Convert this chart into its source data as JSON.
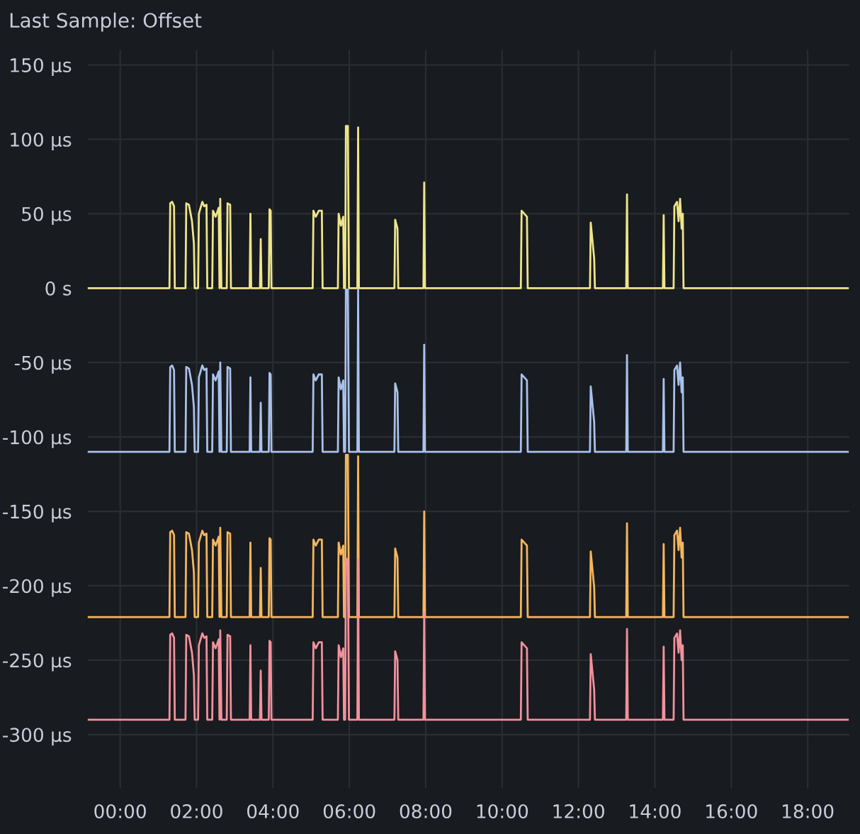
{
  "chart_data": {
    "type": "line",
    "title": "Last Sample: Offset",
    "x": [
      -0.85,
      0.5,
      1.29,
      1.31,
      1.36,
      1.41,
      1.43,
      1.71,
      1.73,
      1.8,
      1.88,
      1.93,
      1.95,
      2.04,
      2.06,
      2.15,
      2.2,
      2.26,
      2.28,
      2.41,
      2.43,
      2.5,
      2.58,
      2.6,
      2.62,
      2.65,
      2.79,
      2.81,
      2.88,
      2.9,
      3.39,
      3.41,
      3.43,
      3.66,
      3.68,
      3.7,
      3.89,
      3.91,
      3.94,
      3.96,
      5.04,
      5.06,
      5.12,
      5.2,
      5.28,
      5.3,
      5.7,
      5.72,
      5.78,
      5.84,
      5.86,
      5.89,
      5.91,
      5.96,
      5.99,
      6.21,
      6.23,
      6.25,
      7.18,
      7.2,
      7.26,
      7.28,
      7.94,
      7.96,
      7.98,
      10.49,
      10.51,
      10.58,
      10.65,
      10.67,
      12.3,
      12.32,
      12.41,
      12.43,
      13.25,
      13.27,
      13.29,
      14.21,
      14.23,
      14.25,
      14.49,
      14.51,
      14.58,
      14.62,
      14.66,
      14.7,
      14.73,
      14.75,
      17.0,
      19.05
    ],
    "series": [
      {
        "color": "#eee58a",
        "values": [
          0,
          0,
          0,
          57,
          58,
          55,
          0,
          0,
          57,
          56,
          45,
          30,
          0,
          0,
          50,
          58,
          55,
          56,
          0,
          0,
          52,
          48,
          54,
          0,
          60,
          0,
          0,
          57,
          56,
          0,
          0,
          50,
          0,
          0,
          33,
          0,
          0,
          53,
          52,
          0,
          0,
          52,
          48,
          52,
          52,
          0,
          0,
          50,
          42,
          48,
          0,
          0,
          109,
          109,
          0,
          0,
          108,
          0,
          0,
          46,
          40,
          0,
          0,
          71,
          0,
          0,
          52,
          50,
          48,
          0,
          0,
          44,
          20,
          0,
          0,
          63,
          0,
          0,
          49,
          0,
          0,
          55,
          58,
          45,
          60,
          40,
          50,
          0,
          0,
          0
        ]
      },
      {
        "color": "#a9c1ea",
        "values": [
          -110,
          -110,
          -110,
          -53,
          -52,
          -55,
          -110,
          -110,
          -53,
          -54,
          -65,
          -80,
          -110,
          -110,
          -60,
          -52,
          -55,
          -54,
          -110,
          -110,
          -58,
          -62,
          -56,
          -110,
          -50,
          -110,
          -110,
          -53,
          -54,
          -110,
          -110,
          -60,
          -110,
          -110,
          -77,
          -110,
          -110,
          -57,
          -58,
          -110,
          -110,
          -58,
          -62,
          -58,
          -58,
          -110,
          -110,
          -60,
          -68,
          -62,
          -110,
          -110,
          -1,
          -1,
          -110,
          -110,
          -1,
          -110,
          -110,
          -64,
          -70,
          -110,
          -110,
          -38,
          -110,
          -110,
          -58,
          -60,
          -62,
          -110,
          -110,
          -66,
          -90,
          -110,
          -110,
          -45,
          -110,
          -110,
          -61,
          -110,
          -110,
          -55,
          -52,
          -65,
          -50,
          -70,
          -60,
          -110,
          -110,
          -110
        ]
      },
      {
        "color": "#f4b65e",
        "values": [
          -221,
          -221,
          -221,
          -164,
          -163,
          -166,
          -221,
          -221,
          -164,
          -165,
          -176,
          -191,
          -221,
          -221,
          -171,
          -163,
          -166,
          -165,
          -221,
          -221,
          -169,
          -173,
          -167,
          -221,
          -161,
          -221,
          -221,
          -164,
          -165,
          -221,
          -221,
          -171,
          -221,
          -221,
          -188,
          -221,
          -221,
          -168,
          -169,
          -221,
          -221,
          -169,
          -173,
          -169,
          -169,
          -221,
          -221,
          -171,
          -179,
          -173,
          -221,
          -221,
          -112,
          -112,
          -221,
          -221,
          -113,
          -221,
          -221,
          -175,
          -181,
          -221,
          -221,
          -150,
          -221,
          -221,
          -169,
          -171,
          -173,
          -221,
          -221,
          -177,
          -201,
          -221,
          -221,
          -158,
          -221,
          -221,
          -172,
          -221,
          -221,
          -166,
          -163,
          -176,
          -161,
          -181,
          -171,
          -221,
          -221,
          -221
        ]
      },
      {
        "color": "#f2919c",
        "values": [
          -290,
          -290,
          -290,
          -233,
          -232,
          -235,
          -290,
          -290,
          -233,
          -234,
          -245,
          -260,
          -290,
          -290,
          -240,
          -232,
          -235,
          -234,
          -290,
          -290,
          -238,
          -242,
          -236,
          -290,
          -230,
          -290,
          -290,
          -233,
          -234,
          -290,
          -290,
          -240,
          -290,
          -290,
          -257,
          -290,
          -290,
          -237,
          -238,
          -290,
          -290,
          -238,
          -242,
          -238,
          -238,
          -290,
          -290,
          -240,
          -248,
          -242,
          -290,
          -290,
          -182,
          -182,
          -290,
          -290,
          -182,
          -290,
          -290,
          -244,
          -250,
          -290,
          -290,
          -218,
          -290,
          -290,
          -238,
          -240,
          -242,
          -290,
          -290,
          -246,
          -270,
          -290,
          -290,
          -229,
          -290,
          -290,
          -241,
          -290,
          -290,
          -235,
          -232,
          -245,
          -230,
          -250,
          -240,
          -290,
          -290,
          -290
        ]
      }
    ],
    "xlim": [
      -0.85,
      19.1
    ],
    "ylim": [
      -336,
      160
    ],
    "xticks": [
      {
        "value": 0,
        "label": "00:00"
      },
      {
        "value": 2,
        "label": "02:00"
      },
      {
        "value": 4,
        "label": "04:00"
      },
      {
        "value": 6,
        "label": "06:00"
      },
      {
        "value": 8,
        "label": "08:00"
      },
      {
        "value": 10,
        "label": "10:00"
      },
      {
        "value": 12,
        "label": "12:00"
      },
      {
        "value": 14,
        "label": "14:00"
      },
      {
        "value": 16,
        "label": "16:00"
      },
      {
        "value": 18,
        "label": "18:00"
      }
    ],
    "yticks": [
      {
        "value": 150,
        "label": "150 µs"
      },
      {
        "value": 100,
        "label": "100 µs"
      },
      {
        "value": 50,
        "label": "50 µs"
      },
      {
        "value": 0,
        "label": "0 s"
      },
      {
        "value": -50,
        "label": "-50 µs"
      },
      {
        "value": -100,
        "label": "-100 µs"
      },
      {
        "value": -150,
        "label": "-150 µs"
      },
      {
        "value": -200,
        "label": "-200 µs"
      },
      {
        "value": -250,
        "label": "-250 µs"
      },
      {
        "value": -300,
        "label": "-300 µs"
      }
    ],
    "grid": true,
    "legend": false,
    "line_style": "solid"
  }
}
